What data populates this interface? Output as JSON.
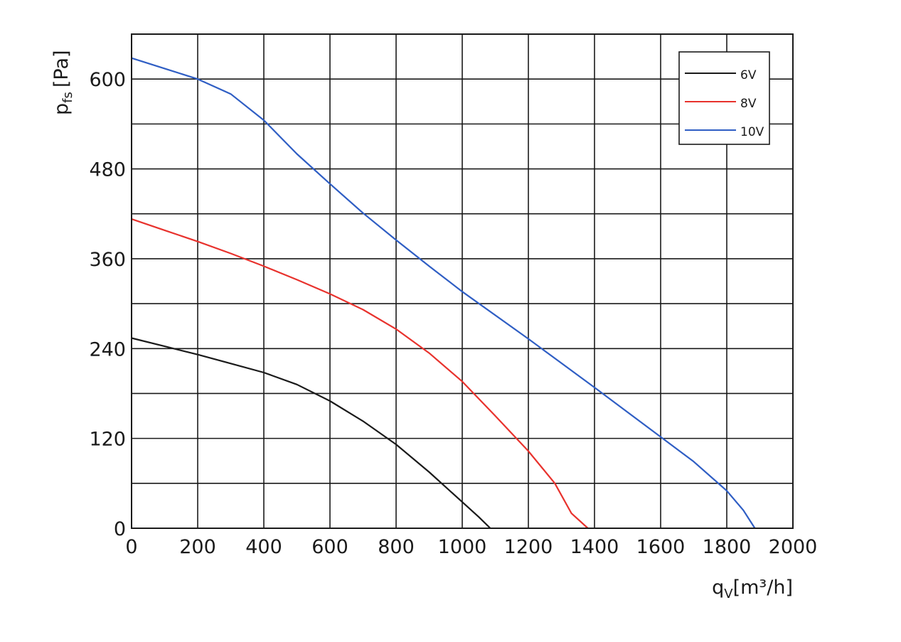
{
  "chart_data": {
    "type": "line",
    "xlabel": "q",
    "xlabel_sub": "V",
    "xlabel_unit": "[m³/h]",
    "ylabel": "p",
    "ylabel_sub": "fs",
    "ylabel_unit": "[Pa]",
    "xlim": [
      0,
      2000
    ],
    "ylim": [
      0,
      660
    ],
    "x_ticks": [
      0,
      200,
      400,
      600,
      800,
      1000,
      1200,
      1400,
      1600,
      1800,
      2000
    ],
    "x_tick_labels": [
      "0",
      "200",
      "400",
      "600",
      "800",
      "1000",
      "1200",
      "1400",
      "1600",
      "1800",
      "2000"
    ],
    "y_ticks": [
      0,
      120,
      240,
      360,
      480,
      600
    ],
    "y_tick_labels": [
      "0",
      "120",
      "240",
      "360",
      "480",
      "600"
    ],
    "y_grid_step": 60,
    "x_grid_step": 200,
    "grid": true,
    "legend_position": "top-right",
    "series": [
      {
        "name": "6V",
        "color": "#1a1a1a",
        "x": [
          0,
          100,
          200,
          300,
          400,
          500,
          600,
          700,
          800,
          900,
          1000,
          1050,
          1085
        ],
        "y": [
          254,
          243,
          232,
          220,
          208,
          192,
          170,
          143,
          112,
          75,
          35,
          15,
          0
        ]
      },
      {
        "name": "8V",
        "color": "#e8322d",
        "x": [
          0,
          100,
          200,
          300,
          400,
          500,
          600,
          700,
          800,
          900,
          1000,
          1100,
          1200,
          1280,
          1330,
          1380
        ],
        "y": [
          413,
          398,
          383,
          367,
          350,
          332,
          313,
          292,
          266,
          234,
          196,
          150,
          103,
          60,
          20,
          0
        ]
      },
      {
        "name": "10V",
        "color": "#2f5ec4",
        "x": [
          0,
          100,
          200,
          300,
          400,
          500,
          600,
          700,
          800,
          900,
          1000,
          1200,
          1400,
          1600,
          1700,
          1800,
          1850,
          1885
        ],
        "y": [
          628,
          614,
          600,
          580,
          545,
          500,
          460,
          421,
          385,
          350,
          316,
          253,
          188,
          122,
          89,
          50,
          24,
          0
        ]
      }
    ]
  }
}
